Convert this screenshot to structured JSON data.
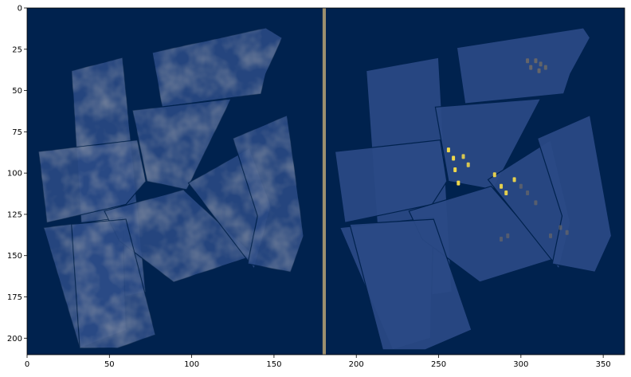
{
  "chart_data": {
    "type": "heatmap",
    "title": "",
    "xlabel": "",
    "ylabel": "",
    "xlim": [
      0,
      363
    ],
    "ylim": [
      210,
      0
    ],
    "grid": false,
    "legend": "none",
    "x_ticks": [
      0,
      50,
      100,
      150,
      200,
      250,
      300,
      350
    ],
    "y_ticks": [
      0,
      25,
      50,
      75,
      100,
      125,
      150,
      175,
      200
    ],
    "colormap": "cividis",
    "colors": {
      "background": "#00224e",
      "panel_fill": "#2a4a85",
      "separator": "#9c8f6e",
      "highlight": "#f0d84a",
      "highlight_dim": "#7a7060"
    },
    "separator_x": [
      179.5,
      181.5
    ],
    "panels": [
      {
        "name": "left",
        "texture": "noisy",
        "tiles": [
          [
            [
              27,
              38
            ],
            [
              58,
              30
            ],
            [
              72,
              172
            ],
            [
              36,
              180
            ]
          ],
          [
            [
              76,
              27
            ],
            [
              145,
              12
            ],
            [
              155,
              18
            ],
            [
              145,
              40
            ],
            [
              142,
              52
            ],
            [
              82,
              60
            ]
          ],
          [
            [
              64,
              62
            ],
            [
              124,
              55
            ],
            [
              97,
              110
            ],
            [
              73,
              105
            ]
          ],
          [
            [
              7,
              87
            ],
            [
              67,
              80
            ],
            [
              72,
              105
            ],
            [
              60,
              119
            ],
            [
              12,
              130
            ]
          ],
          [
            [
              10,
              133
            ],
            [
              58,
              127
            ],
            [
              60,
              195
            ],
            [
              32,
              206
            ]
          ],
          [
            [
              47,
              123
            ],
            [
              95,
              110
            ],
            [
              138,
              150
            ],
            [
              89,
              166
            ],
            [
              56,
              141
            ]
          ],
          [
            [
              98,
              106
            ],
            [
              135,
              85
            ],
            [
              148,
              120
            ],
            [
              138,
              158
            ]
          ],
          [
            [
              125,
              79
            ],
            [
              158,
              65
            ],
            [
              168,
              138
            ],
            [
              160,
              160
            ],
            [
              134,
              155
            ],
            [
              140,
              126
            ]
          ],
          [
            [
              27,
              131
            ],
            [
              60,
              128
            ],
            [
              78,
              198
            ],
            [
              55,
              206
            ],
            [
              32,
              206
            ]
          ]
        ]
      },
      {
        "name": "right",
        "texture": "flat",
        "tiles": [
          [
            [
              206,
              38
            ],
            [
              250,
              30
            ],
            [
              258,
              172
            ],
            [
              216,
              178
            ]
          ],
          [
            [
              261,
              24
            ],
            [
              338,
              12
            ],
            [
              342,
              18
            ],
            [
              330,
              40
            ],
            [
              326,
              52
            ],
            [
              266,
              58
            ]
          ],
          [
            [
              248,
              60
            ],
            [
              312,
              55
            ],
            [
              283,
              110
            ],
            [
              256,
              105
            ]
          ],
          [
            [
              187,
              87
            ],
            [
              251,
              80
            ],
            [
              255,
              105
            ],
            [
              246,
              119
            ],
            [
              193,
              130
            ]
          ],
          [
            [
              190,
              133
            ],
            [
              247,
              127
            ],
            [
              245,
              200
            ],
            [
              222,
              207
            ]
          ],
          [
            [
              232,
              123
            ],
            [
              282,
              108
            ],
            [
              320,
              152
            ],
            [
              275,
              166
            ],
            [
              240,
              140
            ]
          ],
          [
            [
              280,
              104
            ],
            [
              318,
              80
            ],
            [
              330,
              130
            ],
            [
              323,
              158
            ]
          ],
          [
            [
              310,
              79
            ],
            [
              342,
              65
            ],
            [
              355,
              138
            ],
            [
              345,
              160
            ],
            [
              319,
              155
            ],
            [
              325,
              126
            ]
          ],
          [
            [
              196,
              131
            ],
            [
              247,
              128
            ],
            [
              270,
              195
            ],
            [
              242,
              207
            ],
            [
              216,
              207
            ]
          ]
        ],
        "highlights": [
          {
            "cells": [
              [
                304,
                32
              ],
              [
                306,
                36
              ],
              [
                309,
                32
              ],
              [
                311,
                38
              ]
            ],
            "level": 0.6
          },
          {
            "cells": [
              [
                312,
                34
              ],
              [
                315,
                36
              ]
            ],
            "level": 0.5
          },
          {
            "cells": [
              [
                256,
                86
              ],
              [
                259,
                91
              ],
              [
                260,
                98
              ],
              [
                262,
                106
              ]
            ],
            "level": 1.0
          },
          {
            "cells": [
              [
                265,
                90
              ],
              [
                268,
                95
              ]
            ],
            "level": 0.8
          },
          {
            "cells": [
              [
                284,
                101
              ],
              [
                288,
                108
              ],
              [
                291,
                112
              ],
              [
                296,
                104
              ]
            ],
            "level": 0.9
          },
          {
            "cells": [
              [
                300,
                108
              ],
              [
                304,
                112
              ],
              [
                309,
                118
              ]
            ],
            "level": 0.3
          },
          {
            "cells": [
              [
                288,
                140
              ],
              [
                292,
                138
              ]
            ],
            "level": 0.25
          },
          {
            "cells": [
              [
                318,
                138
              ],
              [
                324,
                133
              ],
              [
                328,
                136
              ]
            ],
            "level": 0.25
          }
        ]
      }
    ]
  }
}
